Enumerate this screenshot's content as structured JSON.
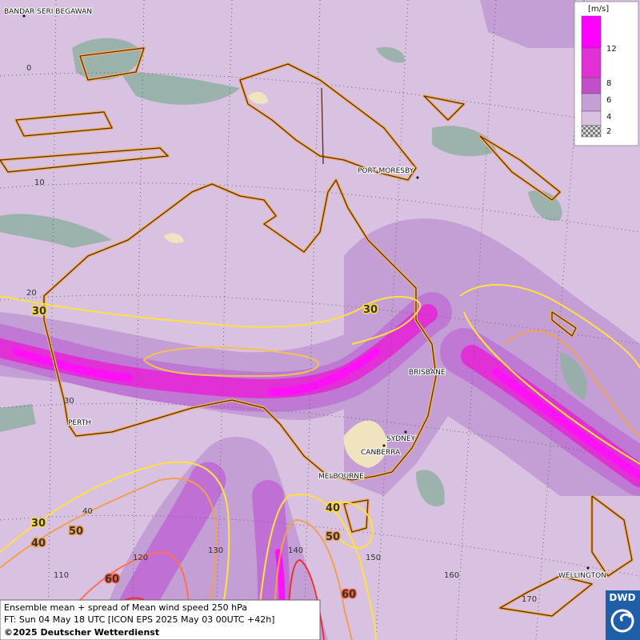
{
  "legend": {
    "unit": "[m/s]",
    "labels": [
      "12",
      "8",
      "6",
      "4",
      "2"
    ]
  },
  "cities": [
    "BANDAR SERI BEGAWAN",
    "PORT MORESBY",
    "BRISBANE",
    "PERTH",
    "SYDNEY",
    "CANBERRA",
    "MELBOURNE",
    "WELLINGTON"
  ],
  "grid_labels": [
    "0",
    "10",
    "20",
    "30",
    "40",
    "110",
    "120",
    "130",
    "140",
    "150",
    "160",
    "170"
  ],
  "contour_labels": [
    "30",
    "30",
    "30",
    "40",
    "50",
    "60",
    "40",
    "50",
    "60"
  ],
  "caption": {
    "line1": "Ensemble mean + spread of Mean wind speed 250 hPa",
    "line2": "FT: Sun 04 May 18 UTC [ICON EPS 2025 May 03 00UTC +42h]",
    "line3": "©2025 Deutscher Wetterdienst"
  },
  "logo": "DWD"
}
